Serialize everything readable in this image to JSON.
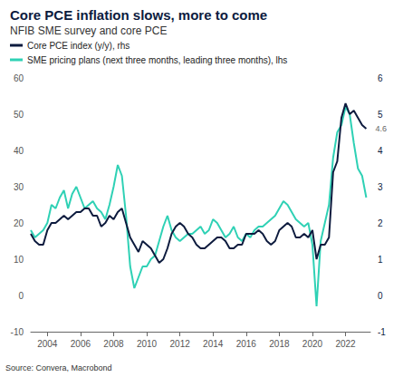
{
  "chart_data": {
    "type": "line",
    "title": "Core PCE inflation slows, more to come",
    "subtitle": "NFIB SME survey and core PCE",
    "source": "Source: Convera, Macrobond",
    "legend": "top-left",
    "grid": false,
    "x": [
      2003,
      2003.25,
      2003.5,
      2003.75,
      2004,
      2004.25,
      2004.5,
      2004.75,
      2005,
      2005.25,
      2005.5,
      2005.75,
      2006,
      2006.25,
      2006.5,
      2006.75,
      2007,
      2007.25,
      2007.5,
      2007.75,
      2008,
      2008.25,
      2008.5,
      2008.75,
      2009,
      2009.25,
      2009.5,
      2009.75,
      2010,
      2010.25,
      2010.5,
      2010.75,
      2011,
      2011.25,
      2011.5,
      2011.75,
      2012,
      2012.25,
      2012.5,
      2012.75,
      2013,
      2013.25,
      2013.5,
      2013.75,
      2014,
      2014.25,
      2014.5,
      2014.75,
      2015,
      2015.25,
      2015.5,
      2015.75,
      2016,
      2016.25,
      2016.5,
      2016.75,
      2017,
      2017.25,
      2017.5,
      2017.75,
      2018,
      2018.25,
      2018.5,
      2018.75,
      2019,
      2019.25,
      2019.5,
      2019.75,
      2020,
      2020.25,
      2020.5,
      2020.75,
      2021,
      2021.25,
      2021.5,
      2021.75,
      2022,
      2022.25,
      2022.5,
      2022.75,
      2023,
      2023.25
    ],
    "xlim": [
      2003,
      2023.5
    ],
    "xticks": [
      2004,
      2006,
      2008,
      2010,
      2012,
      2014,
      2016,
      2018,
      2020,
      2022
    ],
    "ylim": [
      -10,
      60
    ],
    "yticks": [
      -10,
      0,
      10,
      20,
      30,
      40,
      50,
      60
    ],
    "y2lim": [
      -1,
      6
    ],
    "y2ticks": [
      -1,
      0,
      1,
      2,
      3,
      4,
      5,
      6
    ],
    "series": [
      {
        "name": "Core PCE index (y/y), rhs",
        "color": "#0d1b3e",
        "axis": "y2",
        "values": [
          1.7,
          1.5,
          1.4,
          1.4,
          1.8,
          2.0,
          2.0,
          2.1,
          2.2,
          2.1,
          2.2,
          2.3,
          2.3,
          2.4,
          2.4,
          2.2,
          2.2,
          1.9,
          2.0,
          2.2,
          2.1,
          2.3,
          2.4,
          2.0,
          1.6,
          1.4,
          1.2,
          1.5,
          1.4,
          1.3,
          1.1,
          0.9,
          1.0,
          1.3,
          1.7,
          1.9,
          2.0,
          1.9,
          1.7,
          1.6,
          1.4,
          1.3,
          1.3,
          1.4,
          1.5,
          1.6,
          1.6,
          1.5,
          1.3,
          1.3,
          1.4,
          1.4,
          1.7,
          1.7,
          1.7,
          1.8,
          1.7,
          1.5,
          1.4,
          1.5,
          1.8,
          1.9,
          2.0,
          1.9,
          1.6,
          1.6,
          1.7,
          1.6,
          1.8,
          1.0,
          1.4,
          1.4,
          1.6,
          3.4,
          3.7,
          4.9,
          5.3,
          5.0,
          5.1,
          4.9,
          4.7,
          4.6
        ]
      },
      {
        "name": "SME pricing plans (next three months, leading three months), lhs",
        "color": "#2fd1b5",
        "axis": "y",
        "values": [
          18,
          16,
          17,
          18,
          20,
          25,
          24,
          27,
          29,
          24,
          28,
          30,
          27,
          24,
          25,
          26,
          24,
          23,
          21,
          25,
          30,
          36,
          33,
          22,
          8,
          2,
          5,
          8,
          8,
          10,
          11,
          15,
          19,
          22,
          18,
          16,
          15,
          16,
          17,
          17,
          18,
          19,
          17,
          18,
          21,
          20,
          18,
          16,
          17,
          19,
          16,
          15,
          17,
          16,
          18,
          19,
          19,
          20,
          21,
          22,
          24,
          26,
          25,
          23,
          21,
          20,
          19,
          20,
          14,
          -3,
          15,
          20,
          25,
          38,
          45,
          47,
          52,
          50,
          42,
          35,
          33,
          27
        ]
      }
    ],
    "annotations": [
      {
        "text": "4.6",
        "x": 2023.25,
        "y": 4.6,
        "axis": "y2"
      }
    ]
  }
}
